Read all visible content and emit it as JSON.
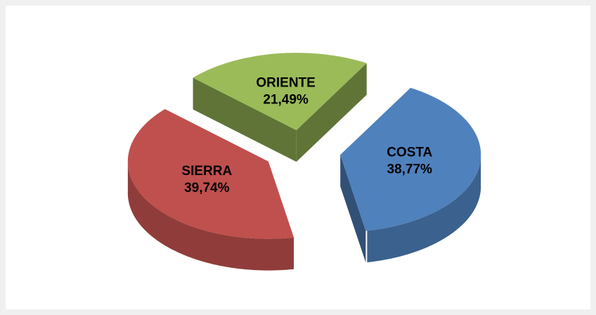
{
  "chart_data": {
    "type": "pie",
    "categories": [
      "COSTA",
      "SIERRA",
      "ORIENTE"
    ],
    "values": [
      38.77,
      39.74,
      21.49
    ],
    "value_labels": [
      "38,77%",
      "39,74%",
      "21,49%"
    ],
    "colors": [
      "#4f81bd",
      "#c0504d",
      "#9bbb59"
    ]
  }
}
